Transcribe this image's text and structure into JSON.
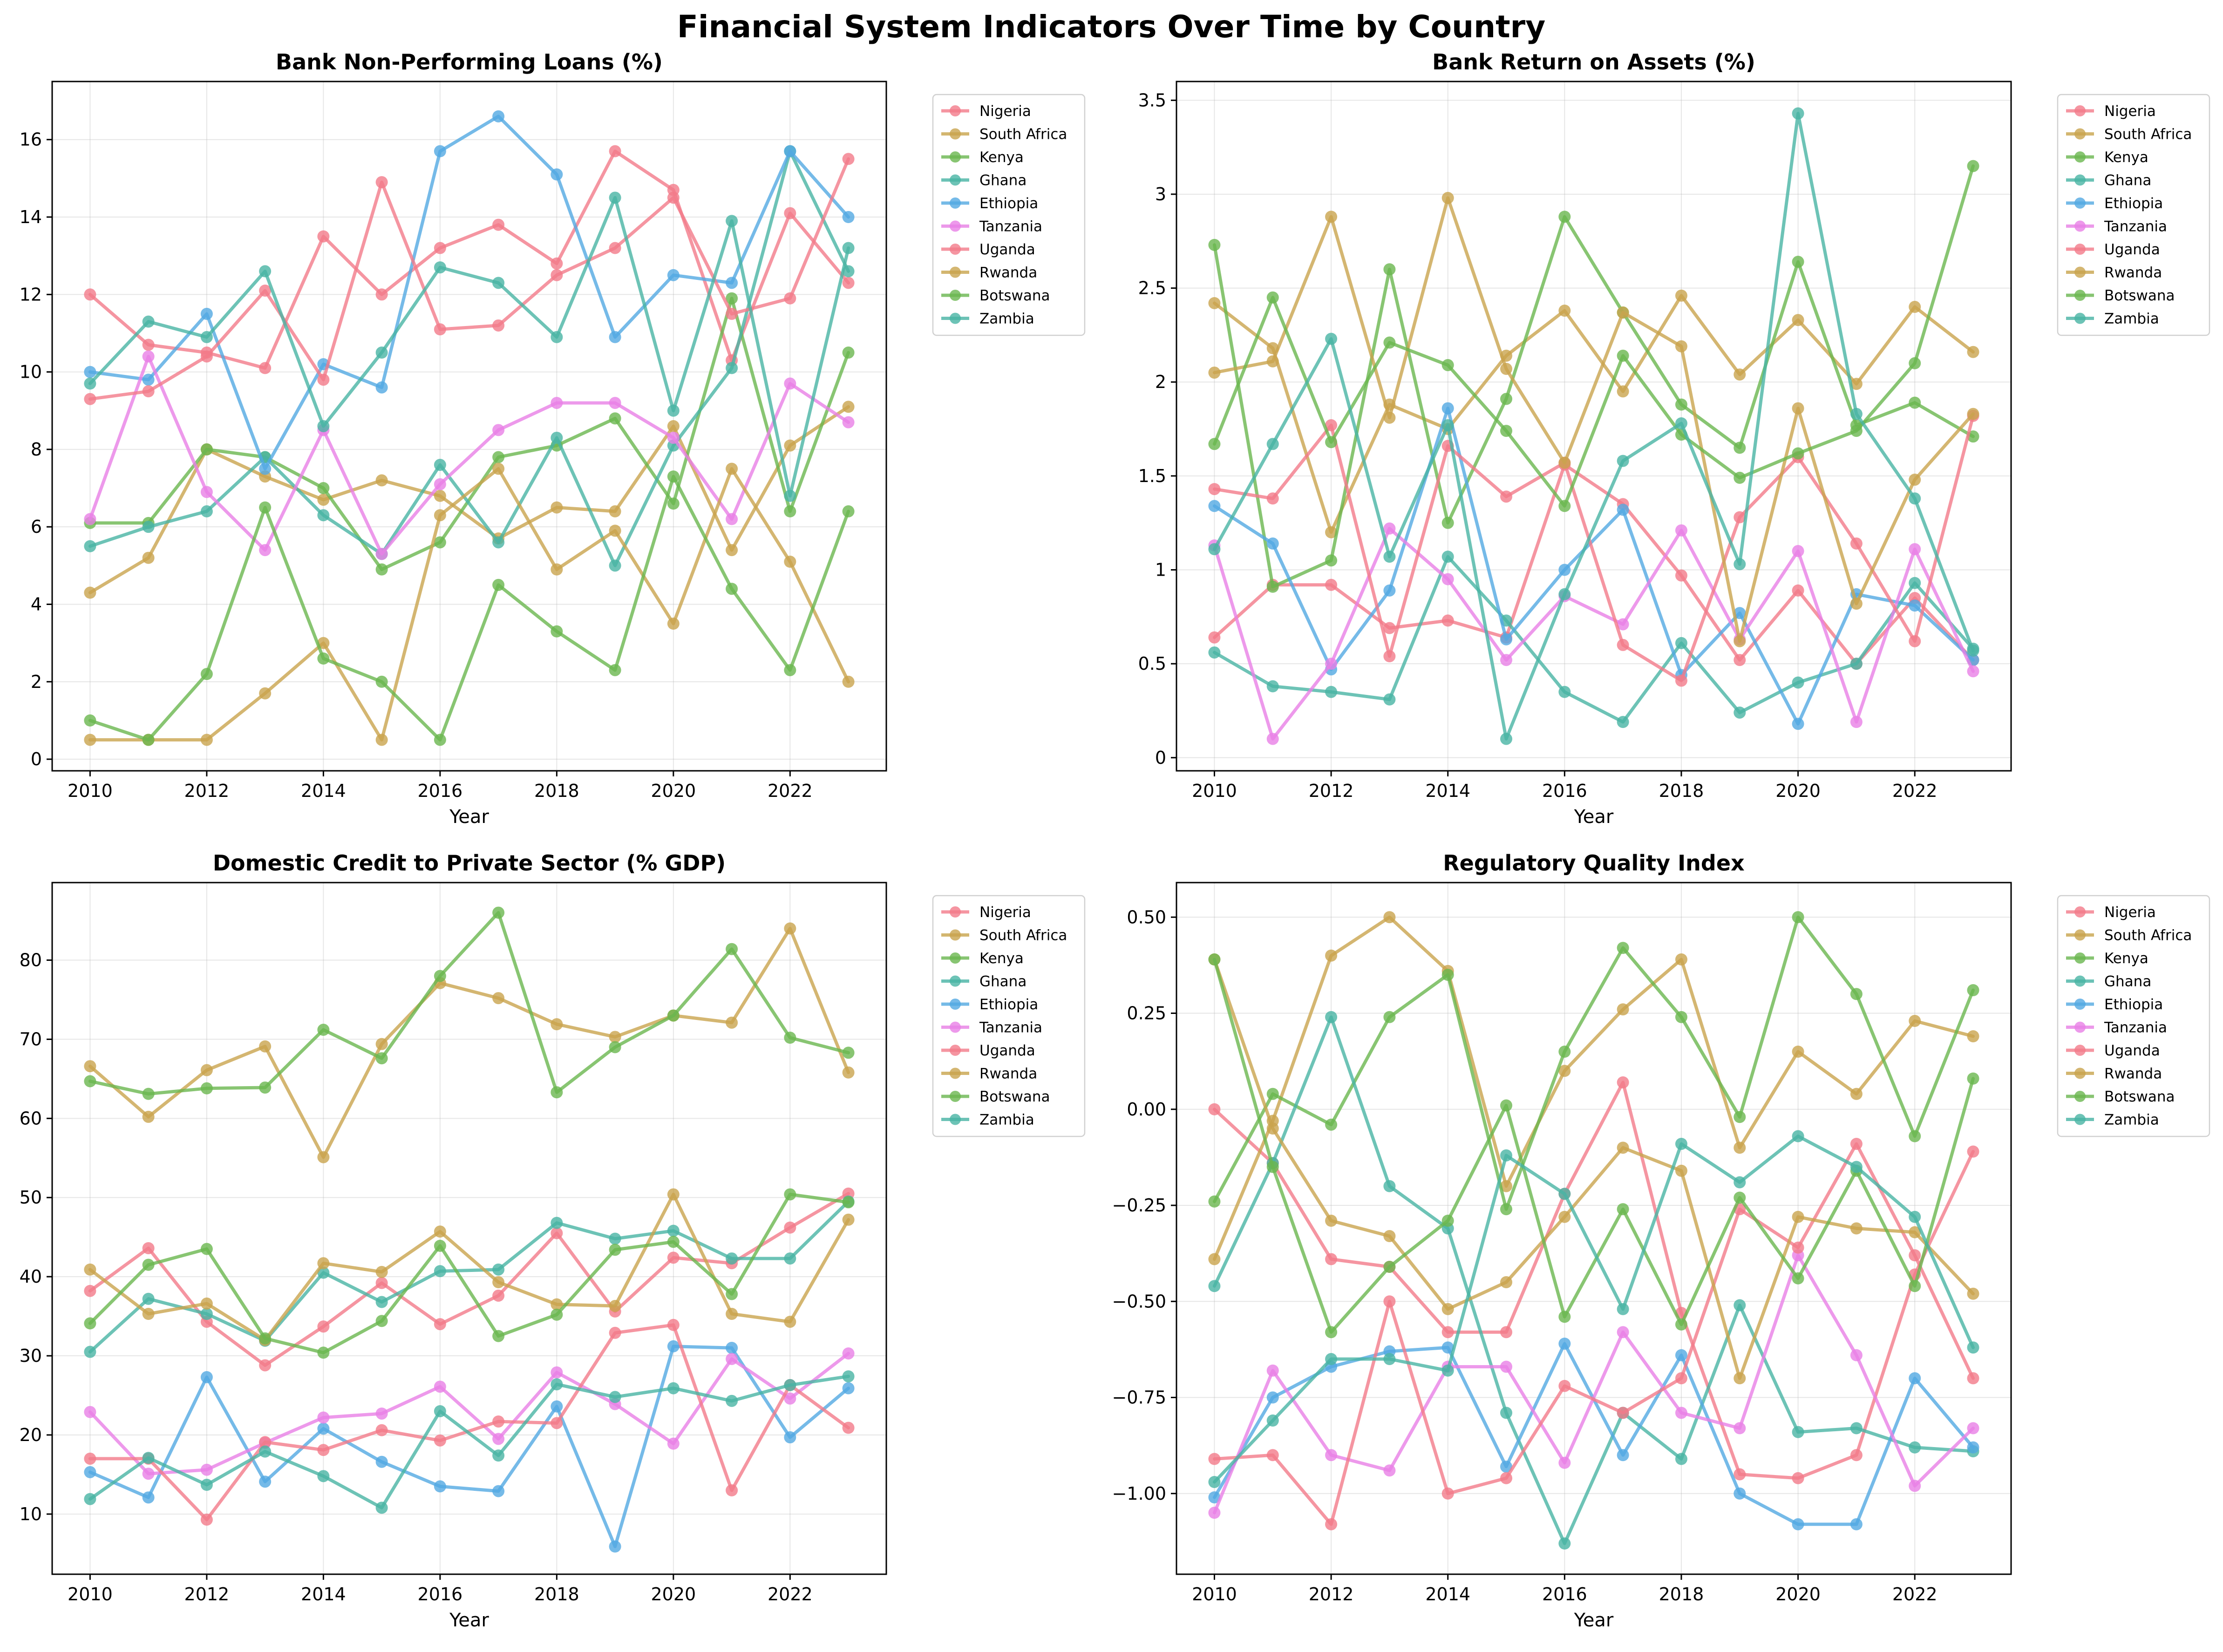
{
  "figure": {
    "suptitle": "Financial System Indicators Over Time by Country"
  },
  "countries": [
    "Nigeria",
    "South Africa",
    "Kenya",
    "Ghana",
    "Ethiopia",
    "Tanzania",
    "Uganda",
    "Rwanda",
    "Botswana",
    "Zambia"
  ],
  "colors": [
    "#f37b8a",
    "#c9a44d",
    "#6ab64f",
    "#48b4a4",
    "#53a9e2",
    "#e880e6",
    "#f37b8a",
    "#c9a44d",
    "#6ab64f",
    "#48b4a4"
  ],
  "chart_data": [
    {
      "type": "line",
      "title": "Bank Non-Performing Loans (%)",
      "xlabel": "Year",
      "ylabel": "",
      "x": [
        2010,
        2011,
        2012,
        2013,
        2014,
        2015,
        2016,
        2017,
        2018,
        2019,
        2020,
        2021,
        2022,
        2023
      ],
      "xlim": [
        2009.35,
        2023.65
      ],
      "xticks": [
        2010,
        2012,
        2014,
        2016,
        2018,
        2020,
        2022
      ],
      "ylim": [
        -0.3,
        17.5
      ],
      "yticks": [
        0,
        2,
        4,
        6,
        8,
        10,
        12,
        14,
        16
      ],
      "grid": true,
      "legend": "outside-upper-right",
      "series": [
        {
          "name": "Nigeria",
          "values": [
            12.0,
            10.7,
            10.5,
            10.1,
            13.5,
            12.0,
            13.2,
            13.8,
            12.8,
            15.7,
            14.7,
            10.3,
            14.1,
            12.3
          ]
        },
        {
          "name": "South Africa",
          "values": [
            4.3,
            5.2,
            8.0,
            7.3,
            6.7,
            7.2,
            6.8,
            5.7,
            6.5,
            6.4,
            8.6,
            5.4,
            8.1,
            9.1
          ]
        },
        {
          "name": "Kenya",
          "values": [
            6.1,
            6.1,
            8.0,
            7.8,
            7.0,
            4.9,
            5.6,
            7.8,
            8.1,
            8.8,
            6.6,
            11.9,
            6.4,
            10.5
          ]
        },
        {
          "name": "Ghana",
          "values": [
            5.5,
            6.0,
            6.4,
            7.8,
            6.3,
            5.3,
            7.6,
            5.6,
            8.3,
            5.0,
            8.1,
            10.1,
            15.7,
            12.6
          ]
        },
        {
          "name": "Ethiopia",
          "values": [
            10.0,
            9.8,
            11.5,
            7.5,
            10.2,
            9.6,
            15.7,
            16.6,
            15.1,
            10.9,
            12.5,
            12.3,
            15.7,
            14.0
          ]
        },
        {
          "name": "Tanzania",
          "values": [
            6.2,
            10.4,
            6.9,
            5.4,
            8.5,
            5.3,
            7.1,
            8.5,
            9.2,
            9.2,
            8.3,
            6.2,
            9.7,
            8.7
          ]
        },
        {
          "name": "Uganda",
          "values": [
            9.3,
            9.5,
            10.4,
            12.1,
            9.8,
            14.9,
            11.1,
            11.2,
            12.5,
            13.2,
            14.5,
            11.5,
            11.9,
            15.5
          ]
        },
        {
          "name": "Rwanda",
          "values": [
            0.5,
            0.5,
            0.5,
            1.7,
            3.0,
            0.5,
            6.3,
            7.5,
            4.9,
            5.9,
            3.5,
            7.5,
            5.1,
            2.0
          ]
        },
        {
          "name": "Botswana",
          "values": [
            1.0,
            0.5,
            2.2,
            6.5,
            2.6,
            2.0,
            0.5,
            4.5,
            3.3,
            2.3,
            7.3,
            4.4,
            2.3,
            6.4
          ]
        },
        {
          "name": "Zambia",
          "values": [
            9.7,
            11.3,
            10.9,
            12.6,
            8.6,
            10.5,
            12.7,
            12.3,
            10.9,
            14.5,
            9.0,
            13.9,
            6.8,
            13.2
          ]
        }
      ]
    },
    {
      "type": "line",
      "title": "Bank Return on Assets (%)",
      "xlabel": "Year",
      "ylabel": "",
      "x": [
        2010,
        2011,
        2012,
        2013,
        2014,
        2015,
        2016,
        2017,
        2018,
        2019,
        2020,
        2021,
        2022,
        2023
      ],
      "xlim": [
        2009.35,
        2023.65
      ],
      "xticks": [
        2010,
        2012,
        2014,
        2016,
        2018,
        2020,
        2022
      ],
      "ylim": [
        -0.07,
        3.6
      ],
      "yticks": [
        0.0,
        0.5,
        1.0,
        1.5,
        2.0,
        2.5,
        3.0,
        3.5
      ],
      "grid": true,
      "legend": "outside-upper-right",
      "series": [
        {
          "name": "Nigeria",
          "values": [
            0.64,
            0.92,
            0.92,
            0.69,
            0.73,
            0.64,
            1.56,
            1.35,
            0.97,
            0.52,
            0.89,
            0.5,
            0.85,
            0.52
          ]
        },
        {
          "name": "South Africa",
          "values": [
            2.42,
            2.18,
            1.2,
            1.88,
            1.75,
            2.14,
            2.38,
            1.95,
            2.46,
            2.04,
            2.33,
            1.99,
            2.4,
            2.16
          ]
        },
        {
          "name": "Kenya",
          "values": [
            2.73,
            0.91,
            1.05,
            2.6,
            1.25,
            1.91,
            2.88,
            2.37,
            1.88,
            1.65,
            2.64,
            1.77,
            1.89,
            1.71
          ]
        },
        {
          "name": "Ghana",
          "values": [
            0.56,
            0.38,
            0.35,
            0.31,
            1.07,
            0.73,
            0.35,
            0.19,
            0.61,
            0.24,
            0.4,
            0.5,
            0.93,
            0.58
          ]
        },
        {
          "name": "Ethiopia",
          "values": [
            1.34,
            1.14,
            0.47,
            0.89,
            1.86,
            0.63,
            1.0,
            1.32,
            0.44,
            0.77,
            0.18,
            0.87,
            0.81,
            0.52
          ]
        },
        {
          "name": "Tanzania",
          "values": [
            1.13,
            0.1,
            0.5,
            1.22,
            0.95,
            0.52,
            0.86,
            0.71,
            1.21,
            0.63,
            1.1,
            0.19,
            1.11,
            0.46
          ]
        },
        {
          "name": "Uganda",
          "values": [
            1.43,
            1.38,
            1.77,
            0.54,
            1.66,
            1.39,
            1.57,
            0.6,
            0.41,
            1.28,
            1.6,
            1.14,
            0.62,
            1.82
          ]
        },
        {
          "name": "Rwanda",
          "values": [
            2.05,
            2.11,
            2.88,
            1.81,
            2.98,
            2.07,
            1.57,
            2.37,
            2.19,
            0.62,
            1.86,
            0.82,
            1.48,
            1.83
          ]
        },
        {
          "name": "Botswana",
          "values": [
            1.67,
            2.45,
            1.68,
            2.21,
            2.09,
            1.74,
            1.34,
            2.14,
            1.72,
            1.49,
            1.62,
            1.74,
            2.1,
            3.15
          ]
        },
        {
          "name": "Zambia",
          "values": [
            1.11,
            1.67,
            2.23,
            1.07,
            1.77,
            0.1,
            0.87,
            1.58,
            1.78,
            1.03,
            3.43,
            1.83,
            1.38,
            0.57
          ]
        }
      ]
    },
    {
      "type": "line",
      "title": "Domestic Credit to Private Sector (% GDP)",
      "xlabel": "Year",
      "ylabel": "",
      "x": [
        2010,
        2011,
        2012,
        2013,
        2014,
        2015,
        2016,
        2017,
        2018,
        2019,
        2020,
        2021,
        2022,
        2023
      ],
      "xlim": [
        2009.35,
        2023.65
      ],
      "xticks": [
        2010,
        2012,
        2014,
        2016,
        2018,
        2020,
        2022
      ],
      "ylim": [
        2.4,
        89.8
      ],
      "yticks": [
        10,
        20,
        30,
        40,
        50,
        60,
        70,
        80
      ],
      "grid": true,
      "legend": "outside-upper-right",
      "series": [
        {
          "name": "Nigeria",
          "values": [
            38.2,
            43.6,
            34.3,
            28.8,
            33.7,
            39.2,
            34.0,
            37.6,
            45.5,
            35.6,
            42.4,
            41.7,
            46.2,
            50.5
          ]
        },
        {
          "name": "South Africa",
          "values": [
            66.6,
            60.2,
            66.1,
            69.1,
            55.1,
            69.4,
            77.1,
            75.2,
            71.9,
            70.3,
            73.0,
            72.1,
            84.0,
            65.8
          ]
        },
        {
          "name": "Kenya",
          "values": [
            64.7,
            63.1,
            63.8,
            63.9,
            71.2,
            67.6,
            78.0,
            86.0,
            63.3,
            69.0,
            73.0,
            81.4,
            70.2,
            68.3
          ]
        },
        {
          "name": "Ghana",
          "values": [
            30.5,
            37.2,
            35.3,
            31.9,
            40.5,
            36.8,
            40.7,
            40.9,
            46.8,
            44.8,
            45.8,
            42.3,
            42.3,
            49.5
          ]
        },
        {
          "name": "Ethiopia",
          "values": [
            15.3,
            12.1,
            27.3,
            14.1,
            20.8,
            16.6,
            13.5,
            12.9,
            23.6,
            5.9,
            31.2,
            31.0,
            19.7,
            25.9
          ]
        },
        {
          "name": "Tanzania",
          "values": [
            22.9,
            15.1,
            15.6,
            19.0,
            22.2,
            22.7,
            26.1,
            19.5,
            27.9,
            23.9,
            18.9,
            29.6,
            24.6,
            30.3
          ]
        },
        {
          "name": "Uganda",
          "values": [
            17.0,
            17.0,
            9.3,
            19.1,
            18.1,
            20.6,
            19.3,
            21.7,
            21.5,
            32.9,
            33.9,
            13.0,
            26.3,
            20.9
          ]
        },
        {
          "name": "Rwanda",
          "values": [
            40.9,
            35.3,
            36.6,
            32.0,
            41.7,
            40.6,
            45.7,
            39.3,
            36.5,
            36.3,
            50.4,
            35.3,
            34.3,
            47.2
          ]
        },
        {
          "name": "Botswana",
          "values": [
            34.1,
            41.5,
            43.5,
            32.2,
            30.4,
            34.4,
            43.9,
            32.5,
            35.2,
            43.4,
            44.4,
            37.8,
            50.4,
            49.4
          ]
        },
        {
          "name": "Zambia",
          "values": [
            11.9,
            17.1,
            13.7,
            17.9,
            14.8,
            10.8,
            23.0,
            17.4,
            26.4,
            24.8,
            25.9,
            24.3,
            26.3,
            27.4
          ]
        }
      ]
    },
    {
      "type": "line",
      "title": "Regulatory Quality Index",
      "xlabel": "Year",
      "ylabel": "",
      "x": [
        2010,
        2011,
        2012,
        2013,
        2014,
        2015,
        2016,
        2017,
        2018,
        2019,
        2020,
        2021,
        2022,
        2023
      ],
      "xlim": [
        2009.35,
        2023.65
      ],
      "xticks": [
        2010,
        2012,
        2014,
        2016,
        2018,
        2020,
        2022
      ],
      "ylim": [
        -1.21,
        0.59
      ],
      "yticks": [
        -1.0,
        -0.75,
        -0.5,
        -0.25,
        0.0,
        0.25,
        0.5
      ],
      "ytick_labels": [
        "−1.00",
        "−0.75",
        "−0.50",
        "−0.25",
        "0.00",
        "0.25",
        "0.50"
      ],
      "grid": true,
      "legend": "outside-upper-right",
      "series": [
        {
          "name": "Nigeria",
          "values": [
            0.0,
            -0.14,
            -0.39,
            -0.41,
            -0.58,
            -0.58,
            -0.22,
            0.07,
            -0.53,
            -0.95,
            -0.96,
            -0.9,
            -0.43,
            -0.11
          ]
        },
        {
          "name": "South Africa",
          "values": [
            -0.39,
            -0.03,
            0.4,
            0.5,
            0.36,
            -0.2,
            0.1,
            0.26,
            0.39,
            -0.1,
            0.15,
            0.04,
            0.23,
            0.19
          ]
        },
        {
          "name": "Kenya",
          "values": [
            -0.24,
            0.04,
            -0.04,
            0.24,
            0.35,
            -0.26,
            0.15,
            0.42,
            0.24,
            -0.02,
            0.5,
            0.3,
            -0.07,
            0.31
          ]
        },
        {
          "name": "Ghana",
          "values": [
            -0.46,
            -0.14,
            0.24,
            -0.2,
            -0.31,
            -0.79,
            -1.13,
            -0.79,
            -0.91,
            -0.51,
            -0.84,
            -0.83,
            -0.88,
            -0.89
          ]
        },
        {
          "name": "Ethiopia",
          "values": [
            -1.01,
            -0.75,
            -0.67,
            -0.63,
            -0.62,
            -0.93,
            -0.61,
            -0.9,
            -0.64,
            -1.0,
            -1.08,
            -1.08,
            -0.7,
            -0.88
          ]
        },
        {
          "name": "Tanzania",
          "values": [
            -1.05,
            -0.68,
            -0.9,
            -0.94,
            -0.67,
            -0.67,
            -0.92,
            -0.58,
            -0.79,
            -0.83,
            -0.38,
            -0.64,
            -0.98,
            -0.83
          ]
        },
        {
          "name": "Uganda",
          "values": [
            -0.91,
            -0.9,
            -1.08,
            -0.5,
            -1.0,
            -0.96,
            -0.72,
            -0.79,
            -0.7,
            -0.26,
            -0.36,
            -0.09,
            -0.38,
            -0.7
          ]
        },
        {
          "name": "Rwanda",
          "values": [
            0.39,
            -0.05,
            -0.29,
            -0.33,
            -0.52,
            -0.45,
            -0.28,
            -0.1,
            -0.16,
            -0.7,
            -0.28,
            -0.31,
            -0.32,
            -0.48
          ]
        },
        {
          "name": "Botswana",
          "values": [
            0.39,
            -0.15,
            -0.58,
            -0.41,
            -0.29,
            0.01,
            -0.54,
            -0.26,
            -0.56,
            -0.23,
            -0.44,
            -0.16,
            -0.46,
            0.08
          ]
        },
        {
          "name": "Zambia",
          "values": [
            -0.97,
            -0.81,
            -0.65,
            -0.65,
            -0.68,
            -0.12,
            -0.22,
            -0.52,
            -0.09,
            -0.19,
            -0.07,
            -0.15,
            -0.28,
            -0.62
          ]
        }
      ]
    }
  ]
}
